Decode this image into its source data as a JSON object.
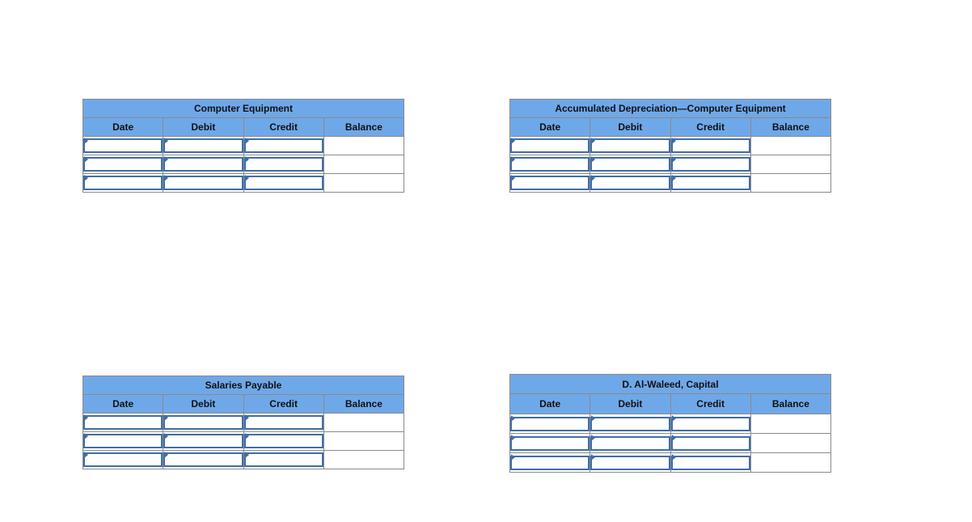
{
  "colors": {
    "header_bg": "#6fa8e8",
    "input_border": "#3f6ea8"
  },
  "columns": [
    "Date",
    "Debit",
    "Credit",
    "Balance"
  ],
  "accounts": [
    {
      "id": "computer-equipment",
      "title": "Computer Equipment",
      "rows": [
        [
          "",
          "",
          "",
          ""
        ],
        [
          "",
          "",
          "",
          ""
        ],
        [
          "",
          "",
          "",
          ""
        ]
      ]
    },
    {
      "id": "accumulated-depreciation",
      "title": "Accumulated Depreciation—Computer Equipment",
      "rows": [
        [
          "",
          "",
          "",
          ""
        ],
        [
          "",
          "",
          "",
          ""
        ],
        [
          "",
          "",
          "",
          ""
        ]
      ]
    },
    {
      "id": "salaries-payable",
      "title": "Salaries Payable",
      "rows": [
        [
          "",
          "",
          "",
          ""
        ],
        [
          "",
          "",
          "",
          ""
        ],
        [
          "",
          "",
          "",
          ""
        ]
      ]
    },
    {
      "id": "capital",
      "title": "D. Al-Waleed, Capital",
      "rows": [
        [
          "",
          "",
          "",
          ""
        ],
        [
          "",
          "",
          "",
          ""
        ],
        [
          "",
          "",
          "",
          ""
        ]
      ]
    }
  ]
}
